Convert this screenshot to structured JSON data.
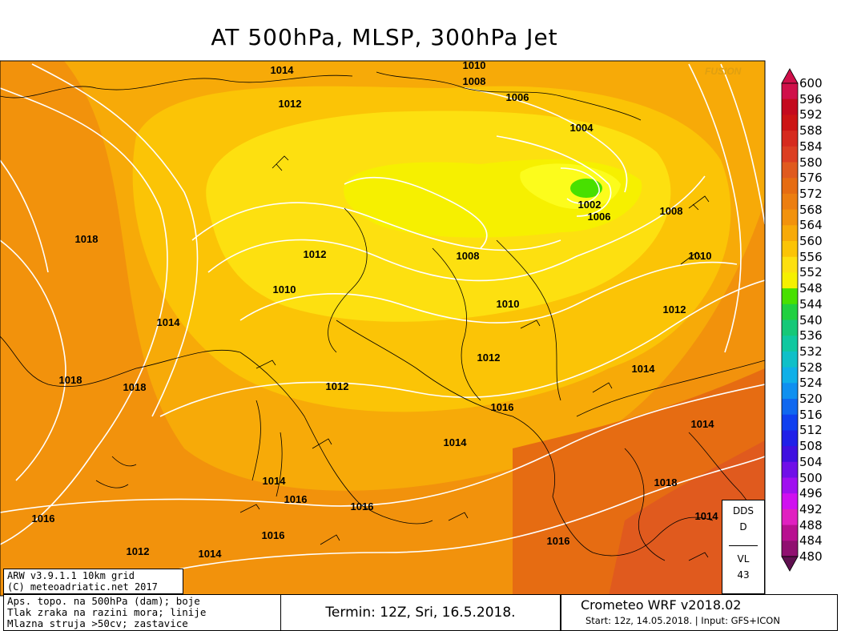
{
  "title": "AT 500hPa, MLSP, 300hPa Jet",
  "watermark": "FUSION",
  "legend": {
    "unit": "dam",
    "levels": [
      600,
      596,
      592,
      588,
      584,
      580,
      576,
      572,
      568,
      564,
      560,
      556,
      552,
      548,
      544,
      540,
      536,
      532,
      528,
      524,
      520,
      516,
      512,
      508,
      504,
      500,
      496,
      492,
      488,
      484,
      480
    ],
    "colors": [
      "#d0104a",
      "#c40a1e",
      "#cc1414",
      "#d62a1e",
      "#dc3e22",
      "#e05a1e",
      "#e66c12",
      "#ec7e10",
      "#f2920c",
      "#f7aa08",
      "#fbc406",
      "#fde010",
      "#f6f000",
      "#48e000",
      "#20d040",
      "#16c878",
      "#10c8a0",
      "#10c0c8",
      "#10b0e8",
      "#1090f0",
      "#1068f0",
      "#1040f0",
      "#2020e8",
      "#4010e0",
      "#7010e8",
      "#a010f0",
      "#d010f0",
      "#e020c0",
      "#b81090",
      "#901070",
      "#601050"
    ]
  },
  "isobars": [
    {
      "label": "1014"
    },
    {
      "label": "1012"
    },
    {
      "label": "1010"
    },
    {
      "label": "1008"
    },
    {
      "label": "1006"
    },
    {
      "label": "1004"
    },
    {
      "label": "1002"
    },
    {
      "label": "1006"
    },
    {
      "label": "1008"
    },
    {
      "label": "1018"
    },
    {
      "label": "1012"
    },
    {
      "label": "1008"
    },
    {
      "label": "1010"
    },
    {
      "label": "1010"
    },
    {
      "label": "1010"
    },
    {
      "label": "1012"
    },
    {
      "label": "1014"
    },
    {
      "label": "1012"
    },
    {
      "label": "1014"
    },
    {
      "label": "1018"
    },
    {
      "label": "1018"
    },
    {
      "label": "1012"
    },
    {
      "label": "1016"
    },
    {
      "label": "1014"
    },
    {
      "label": "1014"
    },
    {
      "label": "1014"
    },
    {
      "label": "1016"
    },
    {
      "label": "1018"
    },
    {
      "label": "1016"
    },
    {
      "label": "1016"
    },
    {
      "label": "1014"
    },
    {
      "label": "1016"
    },
    {
      "label": "1012"
    },
    {
      "label": "1014"
    },
    {
      "label": "1016"
    }
  ],
  "dds_box": {
    "line1": "DDS",
    "line2": "D",
    "line3": "VL",
    "line4": "43"
  },
  "footer": {
    "model": "ARW v3.9.1.1 10km grid",
    "copyright": "(C) meteoadriatic.net 2017",
    "desc1": "Aps. topo. na 500hPa (dam); boje",
    "desc2": "Tlak zraka na razini mora; linije",
    "desc3": "Mlazna struja >50cv; zastavice",
    "termin": "Termin: 12Z, Sri, 16.5.2018.",
    "brand": "Crometeo WRF v2018.02",
    "start": "Start: 12z, 14.05.2018. | Input: GFS+ICON"
  }
}
